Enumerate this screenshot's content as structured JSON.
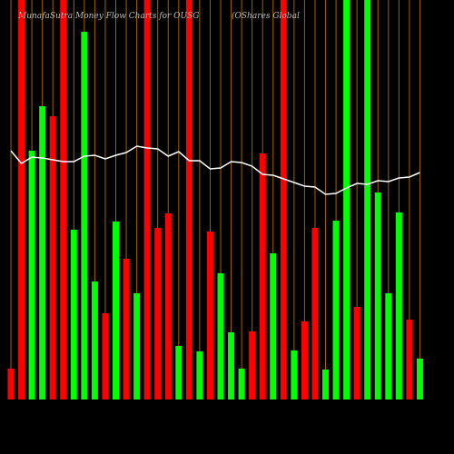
{
  "chart_data": {
    "type": "bar",
    "title": "MunafaSutra Money Flow Charts for OUSG",
    "subtitle": "(OShares Global",
    "categories": [
      null,
      null,
      null,
      null,
      null,
      null,
      null,
      null,
      null,
      null,
      null,
      null,
      null,
      null,
      null,
      null,
      null,
      null,
      null,
      null,
      null,
      null,
      null,
      null,
      null,
      null,
      null,
      null,
      null,
      null,
      null,
      null,
      null,
      null,
      null,
      null,
      null,
      null,
      null,
      null
    ],
    "series": [
      {
        "color": "bars",
        "values": [
          34,
          440,
          274,
          323,
          312,
          440,
          187,
          405,
          130,
          95,
          196,
          155,
          117,
          440,
          189,
          205,
          59,
          440,
          53,
          185,
          139,
          74,
          34,
          75,
          271,
          161,
          440,
          54,
          86,
          189,
          33,
          197,
          440,
          102,
          440,
          228,
          117,
          206,
          88,
          45
        ],
        "colors": [
          "#ff0000",
          "#ff0000",
          "#00ff00",
          "#00ff00",
          "#ff0000",
          "#ff0000",
          "#00ff00",
          "#00ff00",
          "#00ff00",
          "#ff0000",
          "#00ff00",
          "#ff0000",
          "#00ff00",
          "#ff0000",
          "#ff0000",
          "#ff0000",
          "#00ff00",
          "#ff0000",
          "#00ff00",
          "#ff0000",
          "#00ff00",
          "#00ff00",
          "#00ff00",
          "#ff0000",
          "#ff0000",
          "#00ff00",
          "#ff0000",
          "#00ff00",
          "#ff0000",
          "#ff0000",
          "#00ff00",
          "#00ff00",
          "#00ff00",
          "#ff0000",
          "#00ff00",
          "#00ff00",
          "#00ff00",
          "#00ff00",
          "#ff0000",
          "#00ff00"
        ]
      },
      {
        "type": "line",
        "color": "#ffffff",
        "values": [
          274,
          260,
          267,
          266,
          264,
          262,
          262,
          268,
          269,
          265,
          269,
          272,
          279,
          277,
          276,
          268,
          273,
          263,
          263,
          254,
          255,
          262,
          261,
          257,
          248,
          247,
          243,
          239,
          235,
          234,
          226,
          227,
          233,
          238,
          237,
          241,
          240,
          244,
          245,
          250
        ]
      }
    ],
    "ylim": [
      0,
      440
    ],
    "grid": true,
    "grid_color": "#cc7a00"
  }
}
